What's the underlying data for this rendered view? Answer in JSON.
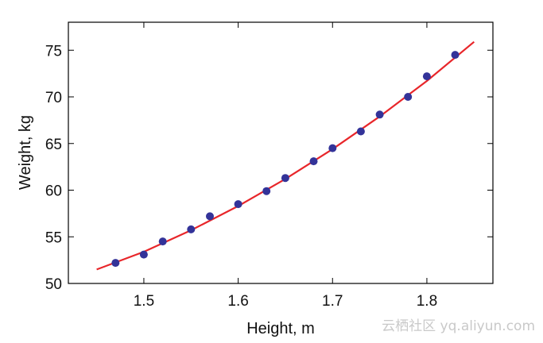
{
  "chart_data": {
    "type": "scatter",
    "xlabel": "Height,  m",
    "ylabel": "Weight,  kg",
    "xlim": [
      1.42,
      1.87
    ],
    "ylim": [
      50,
      78
    ],
    "xticks": [
      1.5,
      1.6,
      1.7,
      1.8
    ],
    "xtick_labels": [
      "1.5",
      "1.6",
      "1.7",
      "1.8"
    ],
    "yticks": [
      50,
      55,
      60,
      65,
      70,
      75
    ],
    "ytick_labels": [
      "50",
      "55",
      "60",
      "65",
      "70",
      "75"
    ],
    "grid": false,
    "series": [
      {
        "type": "scatter",
        "color": "#333399",
        "x": [
          1.47,
          1.5,
          1.52,
          1.55,
          1.57,
          1.6,
          1.63,
          1.65,
          1.68,
          1.7,
          1.73,
          1.75,
          1.78,
          1.8,
          1.83
        ],
        "y": [
          52.2,
          53.1,
          54.5,
          55.8,
          57.2,
          58.5,
          59.9,
          61.3,
          63.1,
          64.5,
          66.3,
          68.1,
          70.0,
          72.2,
          74.5
        ]
      },
      {
        "type": "line",
        "color": "#e8262a",
        "x": [
          1.45,
          1.5,
          1.55,
          1.6,
          1.65,
          1.7,
          1.75,
          1.8,
          1.85
        ],
        "y": [
          51.5,
          53.4,
          55.7,
          58.3,
          61.2,
          64.4,
          67.9,
          71.7,
          75.9
        ]
      }
    ]
  },
  "watermark": "云栖社区 yq.aliyun.com"
}
